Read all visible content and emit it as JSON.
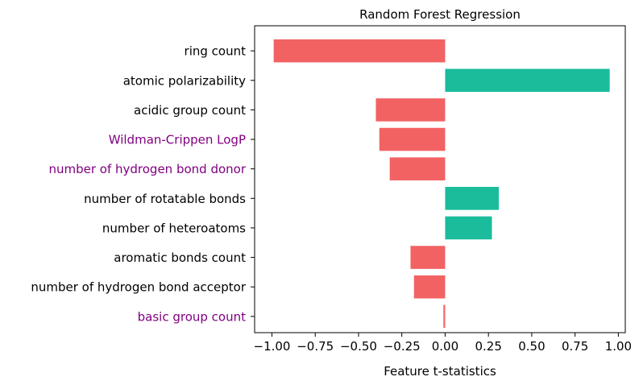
{
  "chart_data": {
    "type": "bar",
    "orientation": "horizontal",
    "title": "Random Forest Regression",
    "xlabel": "Feature t-statistics",
    "ylabel": "",
    "xlim": [
      -1.1,
      1.04
    ],
    "xticks": [
      -1.0,
      -0.75,
      -0.5,
      -0.25,
      0.0,
      0.25,
      0.5,
      0.75,
      1.0
    ],
    "xtick_labels": [
      "−1.00",
      "−0.75",
      "−0.50",
      "−0.25",
      "0.00",
      "0.25",
      "0.50",
      "0.75",
      "1.00"
    ],
    "grid": false,
    "categories": [
      "ring count",
      "atomic polarizability",
      "acidic group count",
      "Wildman-Crippen LogP",
      "number of hydrogen bond donor",
      "number of rotatable bonds",
      "number of heteroatoms",
      "aromatic bonds count",
      "number of hydrogen bond acceptor",
      "basic group count"
    ],
    "values": [
      -0.99,
      0.95,
      -0.4,
      -0.38,
      -0.32,
      0.31,
      0.27,
      -0.2,
      -0.18,
      -0.01
    ],
    "label_colors": [
      "#000000",
      "#000000",
      "#000000",
      "#800080",
      "#800080",
      "#000000",
      "#000000",
      "#000000",
      "#000000",
      "#800080"
    ],
    "colors": {
      "negative": "#f26262",
      "positive": "#1abc9c"
    }
  }
}
